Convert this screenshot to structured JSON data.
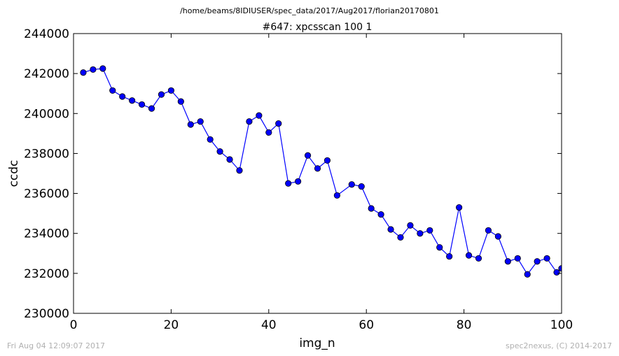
{
  "header": {
    "suptitle": "/home/beams/8IDIUSER/spec_data/2017/Aug2017/florian20170801"
  },
  "footer": {
    "timestamp": "Fri Aug 04 12:09:07 2017",
    "credit": "spec2nexus, (C) 2014-2017"
  },
  "chart_data": {
    "type": "line",
    "title": "#647: xpcsscan 100 1",
    "xlabel": "img_n",
    "ylabel": "ccdc",
    "xlim": [
      0,
      100
    ],
    "ylim": [
      230000,
      244000
    ],
    "xticks": [
      0,
      20,
      40,
      60,
      80,
      100
    ],
    "yticks": [
      230000,
      232000,
      234000,
      236000,
      238000,
      240000,
      242000,
      244000
    ],
    "grid": false,
    "series": [
      {
        "color": "#0000ff",
        "marker": "circle",
        "x": [
          2,
          4,
          6,
          8,
          10,
          12,
          14,
          16,
          18,
          20,
          22,
          24,
          26,
          28,
          30,
          32,
          34,
          36,
          38,
          40,
          42,
          44,
          46,
          48,
          50,
          52,
          54,
          57,
          59,
          61,
          63,
          65,
          67,
          69,
          71,
          73,
          75,
          77,
          79,
          81,
          83,
          85,
          87,
          89,
          91,
          93,
          95,
          97,
          99,
          100
        ],
        "y": [
          242050,
          242200,
          242250,
          241150,
          240850,
          240650,
          240450,
          240250,
          240950,
          241150,
          240600,
          239450,
          239600,
          238700,
          238100,
          237700,
          237150,
          239600,
          239900,
          239050,
          239500,
          236500,
          236600,
          237900,
          237250,
          237650,
          235900,
          236450,
          236350,
          235250,
          234950,
          234200,
          233800,
          234400,
          234000,
          234150,
          233300,
          232850,
          235300,
          232900,
          232750,
          234150,
          233850,
          232600,
          232750,
          231950,
          232600,
          232750,
          232050,
          232250
        ]
      }
    ]
  }
}
